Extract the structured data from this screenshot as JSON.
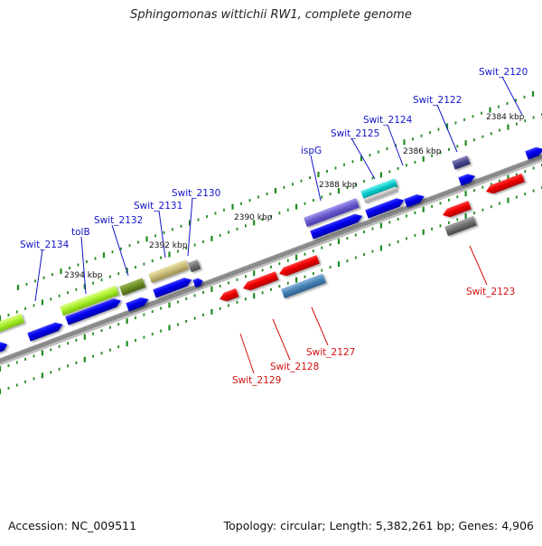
{
  "title": "Sphingomonas wittichii RW1, complete genome",
  "footer": {
    "accession": "Accession: NC_009511",
    "summary": "Topology: circular; Length: 5,382,261 bp; Genes: 4,906"
  },
  "colors": {
    "forward_label": "#1515c8",
    "reverse_label": "#d41010",
    "tick": "#1e8a1e",
    "backbone": "#8c8c8c"
  },
  "kbp_labels": [
    "2394 kbp",
    "2392 kbp",
    "2390 kbp",
    "2388 kbp",
    "2386 kbp",
    "2384 kbp"
  ],
  "gene_labels": {
    "forward": [
      "Swit_2134",
      "tolB",
      "Swit_2132",
      "Swit_2131",
      "Swit_2130",
      "ispG",
      "Swit_2125",
      "Swit_2124",
      "Swit_2122",
      "Swit_2120"
    ],
    "reverse": [
      "Swit_2129",
      "Swit_2128",
      "Swit_2127",
      "Swit_2123"
    ]
  }
}
